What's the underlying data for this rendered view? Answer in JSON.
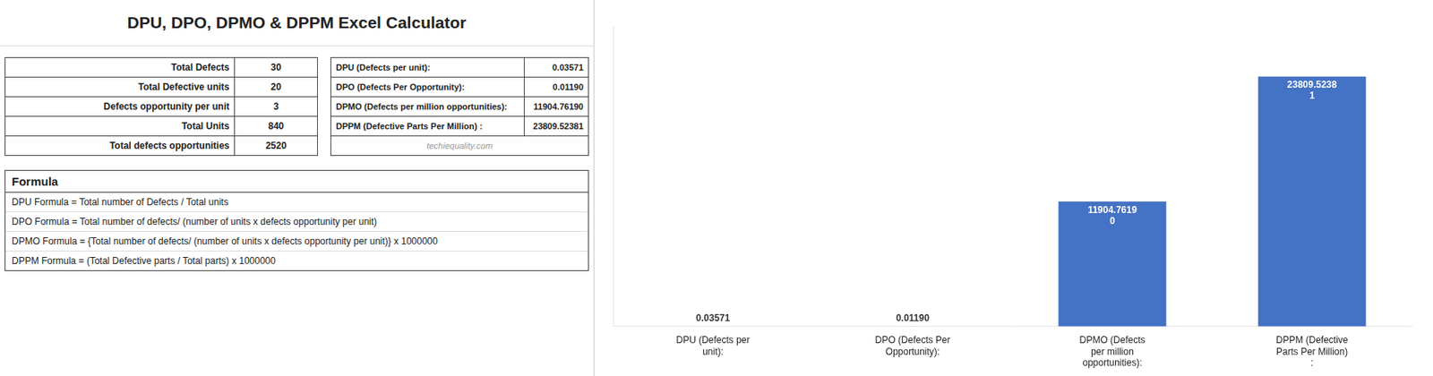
{
  "chart_data": {
    "type": "bar",
    "title": "DPU, DPO, DPMO & DPPM Excel Calculator",
    "categories": [
      "DPU (Defects per\nunit):",
      "DPO (Defects Per\nOpportunity):",
      "DPMO (Defects\nper million\nopportunities):",
      "DPPM (Defective\nParts Per Million)\n:"
    ],
    "values": [
      0.03571,
      0.0119,
      11904.7619,
      23809.52381
    ],
    "value_labels": [
      "0.03571",
      "0.01190",
      "11904.7619\n0",
      "23809.5238\n1"
    ],
    "data_labels": true,
    "color": "#4472C4",
    "ylim": [
      0,
      28571.428572
    ],
    "tick_labels": "x",
    "grid": false,
    "annotations": [
      [
        [
          "Total Defects",
          "30"
        ],
        [
          "Total Defective units",
          "20"
        ],
        [
          "Defects opportunity per unit",
          "3"
        ],
        [
          "Total Units",
          "840"
        ],
        [
          "Total defects opportunities",
          "2520"
        ]
      ],
      [
        [
          "DPU (Defects per unit):",
          "0.03571"
        ],
        [
          "DPO (Defects Per Opportunity):",
          "0.01190"
        ],
        [
          "DPMO (Defects per million opportunities):",
          "11904.76190"
        ],
        [
          "DPPM (Defective Parts Per Million) :",
          "23809.52381"
        ]
      ],
      [
        [
          "Formula"
        ],
        [
          "DPU Formula = Total number of Defects / Total units"
        ],
        [
          "DPO Formula = Total number of defects/ (number of units x defects opportunity per unit)"
        ],
        [
          "DPMO Formula = {Total number of defects/ (number of units x defects opportunity per unit)} x 1000000"
        ],
        [
          "DPPM Formula = (Total Defective parts / Total parts) x 1000000"
        ]
      ],
      [
        [
          "techiequality.com"
        ]
      ]
    ]
  }
}
